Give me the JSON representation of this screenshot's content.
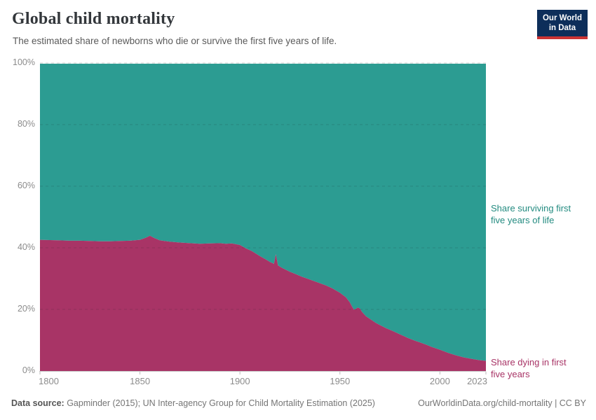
{
  "header": {
    "title": "Global child mortality",
    "subtitle": "The estimated share of newborns who die or survive the first five years of life.",
    "logo_line1": "Our World",
    "logo_line2": "in Data"
  },
  "chart_data": {
    "type": "area",
    "stacked": true,
    "title": "Global child mortality",
    "x": [
      1800,
      1805,
      1810,
      1815,
      1820,
      1825,
      1830,
      1835,
      1840,
      1845,
      1850,
      1853,
      1855,
      1857,
      1860,
      1865,
      1870,
      1875,
      1880,
      1885,
      1890,
      1893,
      1896,
      1900,
      1903,
      1906,
      1910,
      1913,
      1915,
      1917,
      1918,
      1919,
      1921,
      1925,
      1928,
      1931,
      1934,
      1937,
      1940,
      1943,
      1946,
      1950,
      1953,
      1955,
      1956,
      1957,
      1958,
      1959,
      1960,
      1961,
      1963,
      1965,
      1968,
      1970,
      1973,
      1976,
      1980,
      1984,
      1988,
      1990,
      1993,
      1996,
      2000,
      2004,
      2008,
      2012,
      2016,
      2020,
      2023
    ],
    "series": [
      {
        "name": "Share dying in first five years",
        "color": "#a83466",
        "values": [
          42.6,
          42.5,
          42.4,
          42.3,
          42.3,
          42.2,
          42.1,
          42.1,
          42.2,
          42.3,
          42.6,
          43.3,
          43.9,
          43.2,
          42.4,
          42.0,
          41.7,
          41.5,
          41.3,
          41.4,
          41.5,
          41.3,
          41.4,
          40.9,
          39.8,
          38.9,
          37.3,
          36.2,
          35.4,
          34.8,
          37.9,
          34.3,
          33.5,
          32.2,
          31.4,
          30.6,
          29.9,
          29.2,
          28.5,
          27.8,
          26.9,
          25.4,
          23.9,
          22.2,
          21.0,
          19.9,
          20.2,
          20.6,
          20.3,
          19.2,
          17.8,
          16.9,
          15.6,
          14.9,
          13.9,
          13.1,
          11.9,
          10.7,
          9.7,
          9.3,
          8.6,
          7.8,
          6.9,
          5.9,
          5.1,
          4.4,
          3.9,
          3.5,
          3.3
        ]
      },
      {
        "name": "Share surviving first five years of life",
        "color": "#2c9c92",
        "values": [
          57.4,
          57.5,
          57.6,
          57.7,
          57.7,
          57.8,
          57.9,
          57.9,
          57.8,
          57.7,
          57.4,
          56.7,
          56.1,
          56.8,
          57.6,
          58.0,
          58.3,
          58.5,
          58.7,
          58.6,
          58.5,
          58.7,
          58.6,
          59.1,
          60.2,
          61.1,
          62.7,
          63.8,
          64.6,
          65.2,
          62.1,
          65.7,
          66.5,
          67.8,
          68.6,
          69.4,
          70.1,
          70.8,
          71.5,
          72.2,
          73.1,
          74.6,
          76.1,
          77.8,
          79.0,
          80.1,
          79.8,
          79.4,
          79.7,
          80.8,
          82.2,
          83.1,
          84.4,
          85.1,
          86.1,
          86.9,
          88.1,
          89.3,
          90.3,
          90.7,
          91.4,
          92.2,
          93.1,
          94.1,
          94.9,
          95.6,
          96.1,
          96.5,
          96.7
        ]
      }
    ],
    "xlim": [
      1800,
      2023
    ],
    "ylim": [
      0,
      100
    ],
    "x_ticks": [
      1800,
      1850,
      1900,
      1950,
      2000,
      2023
    ],
    "y_ticks": [
      0,
      20,
      40,
      60,
      80,
      100
    ],
    "y_tick_suffix": "%",
    "grid": "horizontal-dashed",
    "legend_position": "right-annotations"
  },
  "annotations": {
    "surviving_label": "Share surviving first\nfive years of life",
    "dying_label": "Share dying in first\nfive years"
  },
  "footer": {
    "source_label": "Data source:",
    "source_text": " Gapminder (2015); UN Inter-agency Group for Child Mortality Estimation (2025)",
    "credit": "OurWorldinData.org/child-mortality | CC BY"
  },
  "colors": {
    "surviving_area": "#2c9c92",
    "dying_area": "#a83466",
    "surviving_text": "#238b80",
    "dying_text": "#a83466",
    "logo_bg": "#0d2e5a",
    "logo_stripe": "#cb3434",
    "axis_text": "#8c8c8c",
    "axis_line": "#c8c8c8"
  }
}
